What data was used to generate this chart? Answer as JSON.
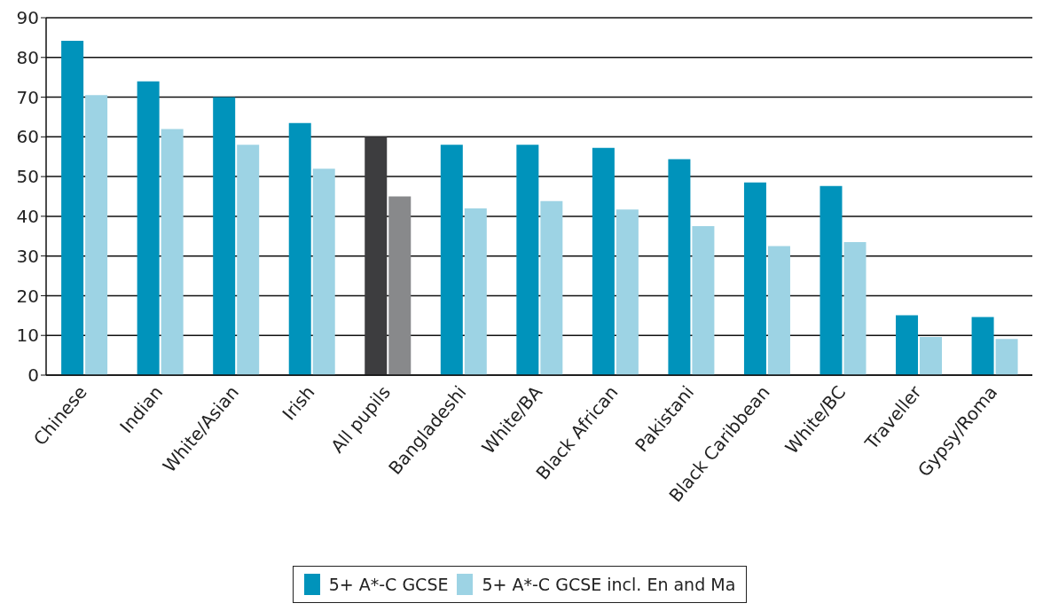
{
  "chart_data": {
    "type": "bar",
    "categories": [
      "Chinese",
      "Indian",
      "White/Asian",
      "Irish",
      "All pupils",
      "Bangladeshi",
      "White/BA",
      "Black African",
      "Pakistani",
      "Black Caribbean",
      "White/BC",
      "Traveller",
      "Gypsy/Roma"
    ],
    "series": [
      {
        "name": "5+ A*-C GCSE",
        "color": "#0093bb",
        "colors": [
          "#0093bb",
          "#0093bb",
          "#0093bb",
          "#0093bb",
          "#3d3d3f",
          "#0093bb",
          "#0093bb",
          "#0093bb",
          "#0093bb",
          "#0093bb",
          "#0093bb",
          "#0093bb",
          "#0093bb"
        ],
        "values": [
          84.2,
          74,
          70,
          63.5,
          60,
          58,
          58,
          57.2,
          54.4,
          48.5,
          47.6,
          15.1,
          14.6
        ]
      },
      {
        "name": "5+ A*-C GCSE incl. En and Ma",
        "color": "#9dd3e4",
        "colors": [
          "#9dd3e4",
          "#9dd3e4",
          "#9dd3e4",
          "#9dd3e4",
          "#88898b",
          "#9dd3e4",
          "#9dd3e4",
          "#9dd3e4",
          "#9dd3e4",
          "#9dd3e4",
          "#9dd3e4",
          "#9dd3e4",
          "#9dd3e4"
        ],
        "values": [
          70.5,
          62,
          58,
          52,
          45,
          42,
          43.8,
          41.7,
          37.5,
          32.5,
          33.5,
          9.6,
          9.1
        ]
      }
    ],
    "ylim": [
      0,
      90
    ],
    "yticks": [
      0,
      10,
      20,
      30,
      40,
      50,
      60,
      70,
      80,
      90
    ],
    "grid": "y",
    "legend": "bottom"
  }
}
